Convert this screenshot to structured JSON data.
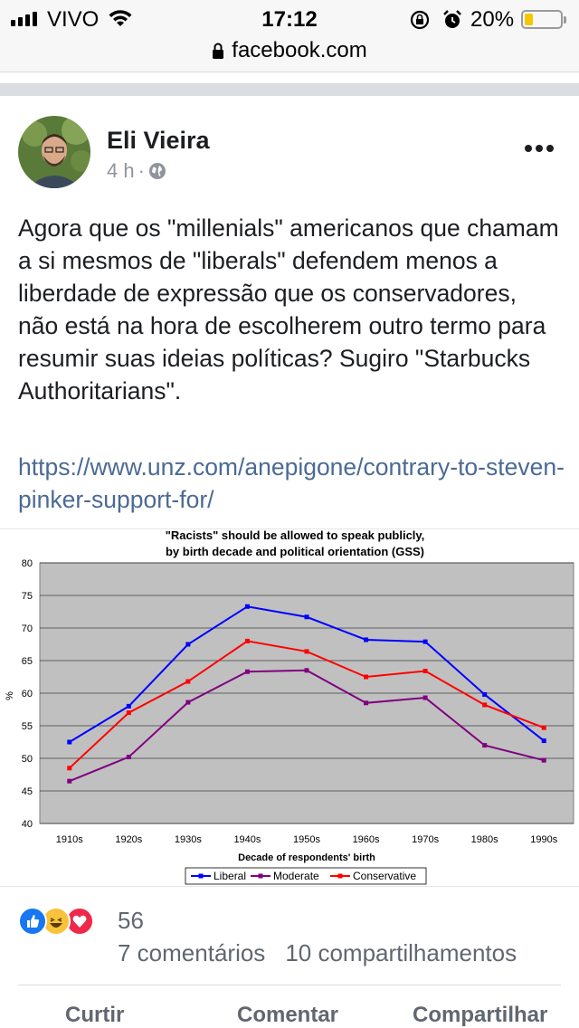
{
  "status_bar": {
    "carrier": "VIVO",
    "time": "17:12",
    "battery_percent": "20%",
    "battery_level": 0.2,
    "icons": [
      "signal-icon",
      "wifi-icon",
      "rotation-lock-icon",
      "alarm-icon",
      "battery-icon"
    ]
  },
  "browser": {
    "url": "facebook.com",
    "icon": "lock-icon"
  },
  "post": {
    "author": "Eli Vieira",
    "time_ago": "4 h",
    "meta_separator": "·",
    "privacy_icon": "globe-icon",
    "text": "Agora que os \"millenials\" americanos que chamam a si mesmos de \"liberals\" defendem menos a liberdade de expressão que os conservadores, não está na hora de escolherem outro termo para resumir suas ideias políticas? Sugiro \"Starbucks Authoritarians\".",
    "link": "https://www.unz.com/anepigone/contrary-to-steven-pinker-support-for/"
  },
  "chart_data": {
    "type": "line",
    "title": "\"Racists\" should be allowed to speak publicly,",
    "subtitle": "by birth decade and political orientation (GSS)",
    "xlabel": "Decade of respondents' birth",
    "ylabel": "%",
    "categories": [
      "1910s",
      "1920s",
      "1930s",
      "1940s",
      "1950s",
      "1960s",
      "1970s",
      "1980s",
      "1990s"
    ],
    "ylim": [
      40,
      80
    ],
    "yticks": [
      40,
      45,
      50,
      55,
      60,
      65,
      70,
      75,
      80
    ],
    "grid": true,
    "legend_position": "bottom",
    "series": [
      {
        "name": "Liberal",
        "color": "#0000ff",
        "values": [
          52.5,
          58,
          67.5,
          73.3,
          71.7,
          68.2,
          67.9,
          59.8,
          52.7
        ]
      },
      {
        "name": "Moderate",
        "color": "#800080",
        "values": [
          46.5,
          50.2,
          58.6,
          63.3,
          63.5,
          58.5,
          59.3,
          52.0,
          49.7
        ]
      },
      {
        "name": "Conservative",
        "color": "#ff0000",
        "values": [
          48.5,
          57.0,
          61.8,
          68.0,
          66.4,
          62.5,
          63.4,
          58.2,
          54.7
        ]
      }
    ]
  },
  "engagement": {
    "reaction_count": "56",
    "reaction_icons": [
      "like-icon",
      "haha-icon",
      "love-icon"
    ],
    "comments": "7 comentários",
    "shares": "10 compartilhamentos"
  },
  "actions": {
    "like": "Curtir",
    "comment": "Comentar",
    "share": "Compartilhar"
  }
}
